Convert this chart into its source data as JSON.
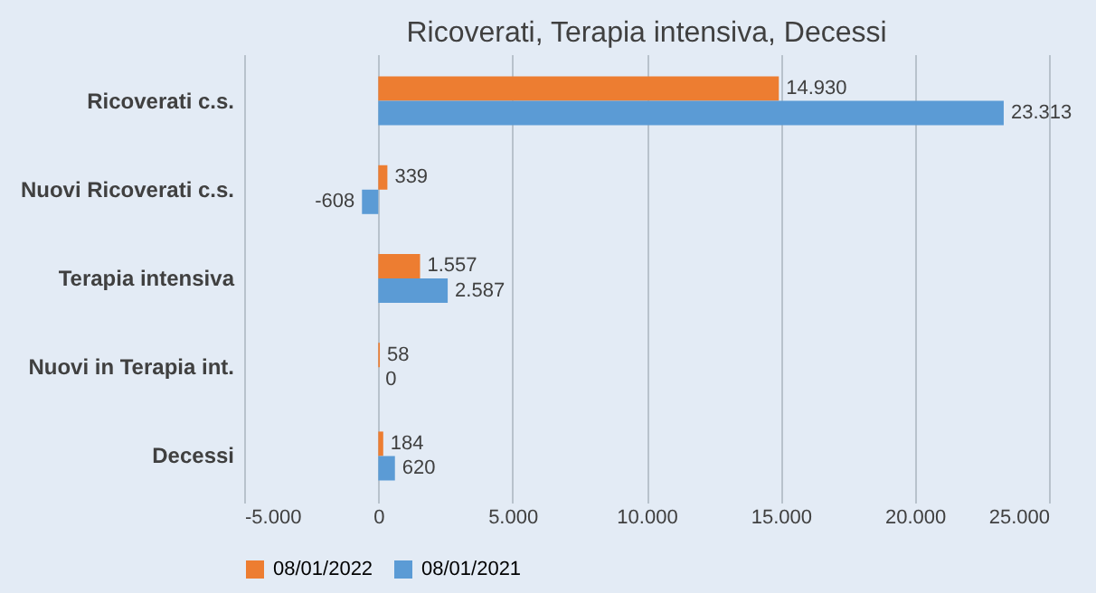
{
  "chart_data": {
    "type": "bar",
    "orientation": "horizontal",
    "title": "Ricoverati, Terapia intensiva, Decessi",
    "categories": [
      "Ricoverati c.s.",
      "Nuovi Ricoverati c.s.",
      "Terapia intensiva",
      "Nuovi in Terapia int.",
      "Decessi"
    ],
    "series": [
      {
        "name": "08/01/2022",
        "color": "#ed7d31",
        "values": [
          14930,
          339,
          1557,
          58,
          184
        ],
        "value_labels": [
          "14.930",
          "339",
          "1.557",
          "58",
          "184"
        ]
      },
      {
        "name": "08/01/2021",
        "color": "#5b9bd5",
        "values": [
          23313,
          -608,
          2587,
          0,
          620
        ],
        "value_labels": [
          "23.313",
          "-608",
          "2.587",
          "0",
          "620"
        ]
      }
    ],
    "xlim": [
      -5000,
      25000
    ],
    "xticks": [
      {
        "value": -5000,
        "label": "-5.000"
      },
      0,
      {
        "value": 5000,
        "label": "5.000"
      },
      {
        "value": 10000,
        "label": "10.000"
      },
      {
        "value": 15000,
        "label": "15.000"
      },
      {
        "value": 20000,
        "label": "20.000"
      },
      {
        "value": 25000,
        "label": "25.000"
      }
    ],
    "grid": "x",
    "legend": "bottom"
  }
}
